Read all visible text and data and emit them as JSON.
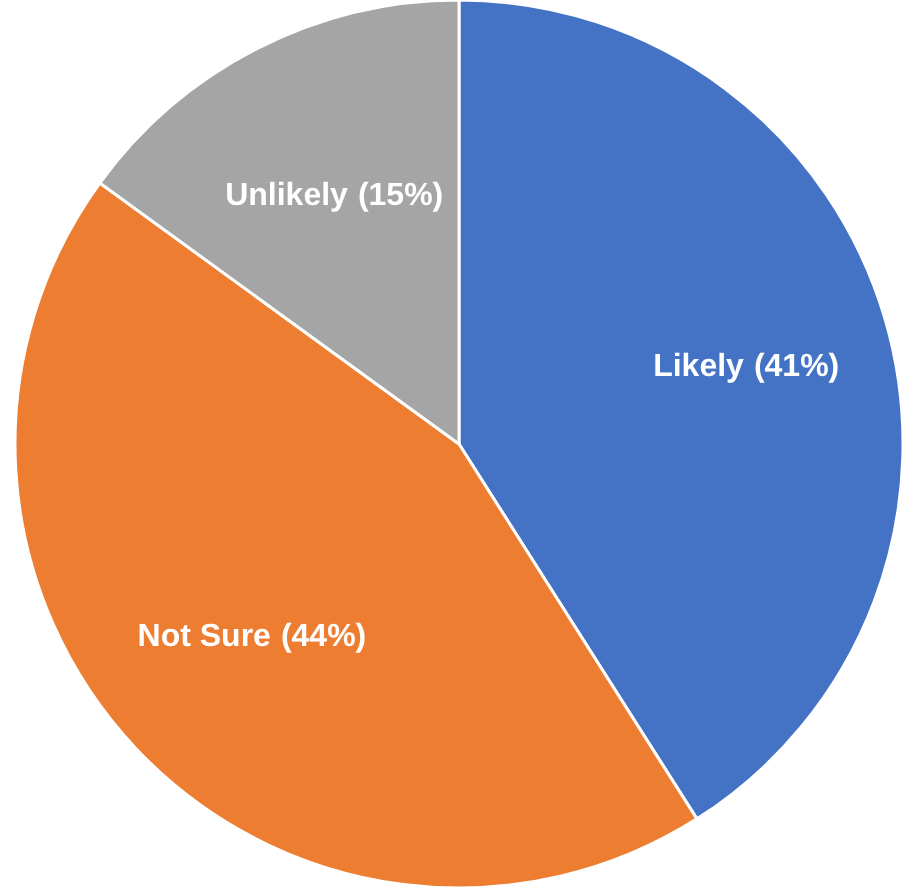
{
  "chart_data": {
    "type": "pie",
    "categories": [
      "Likely",
      "Not Sure",
      "Unlikely"
    ],
    "values": [
      41,
      44,
      15
    ],
    "colors": [
      "#4472c4",
      "#ed7d31",
      "#a5a5a5"
    ],
    "value_labels": [
      "(41%)",
      "(44%)",
      "(15%)"
    ]
  }
}
